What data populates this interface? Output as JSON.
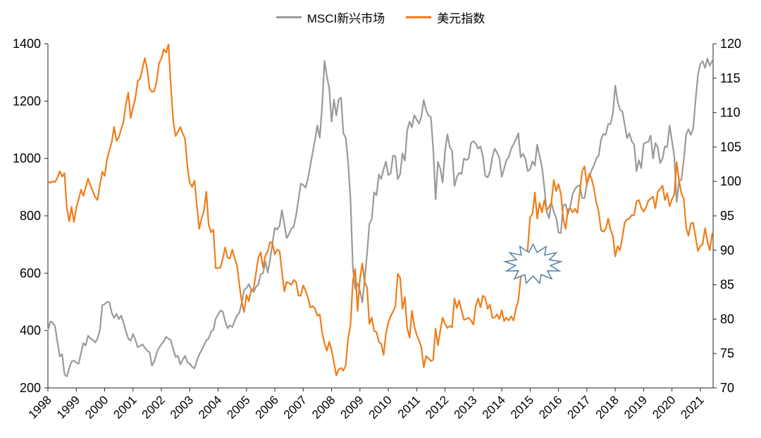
{
  "chart_data": {
    "type": "line",
    "title": "",
    "legend": [
      {
        "name": "MSCI新兴市场",
        "color": "#9a9a9a"
      },
      {
        "name": "美元指数",
        "color": "#ef7d1a"
      }
    ],
    "x_domain": [
      1998,
      2021.45
    ],
    "x_tick_labels": [
      "1998",
      "1999",
      "2000",
      "2001",
      "2002",
      "2003",
      "2004",
      "2005",
      "2006",
      "2007",
      "2008",
      "2009",
      "2010",
      "2011",
      "2012",
      "2013",
      "2014",
      "2015",
      "2016",
      "2017",
      "2018",
      "2019",
      "2020",
      "2021"
    ],
    "left_axis": {
      "label": "",
      "min": 200,
      "max": 1400,
      "ticks": [
        200,
        400,
        600,
        800,
        1000,
        1200,
        1400
      ]
    },
    "right_axis": {
      "label": "",
      "min": 70,
      "max": 120,
      "ticks": [
        70,
        75,
        80,
        85,
        90,
        95,
        100,
        105,
        110,
        115,
        120
      ]
    },
    "start_year": 1998,
    "frequency": "monthly",
    "series": [
      {
        "name": "MSCI新兴市场",
        "axis": "left",
        "color": "#9a9a9a",
        "values": [
          400,
          432,
          428,
          415,
          362,
          310,
          318,
          248,
          240,
          268,
          292,
          295,
          288,
          284,
          322,
          356,
          348,
          382,
          372,
          368,
          358,
          372,
          402,
          489,
          492,
          500,
          498,
          462,
          444,
          458,
          440,
          452,
          428,
          398,
          372,
          365,
          388,
          368,
          342,
          346,
          352,
          340,
          330,
          324,
          278,
          292,
          322,
          340,
          352,
          362,
          378,
          372,
          366,
          336,
          308,
          312,
          282,
          298,
          312,
          290,
          284,
          274,
          268,
          294,
          316,
          332,
          348,
          366,
          372,
          396,
          402,
          442,
          456,
          470,
          466,
          432,
          408,
          418,
          412,
          434,
          452,
          462,
          496,
          542,
          548,
          562,
          544,
          534,
          552,
          560,
          596,
          600,
          640,
          602,
          648,
          706,
          758,
          752,
          766,
          820,
          772,
          722,
          736,
          756,
          762,
          802,
          856,
          912,
          908,
          898,
          930,
          975,
          1020,
          1065,
          1115,
          1072,
          1180,
          1340,
          1288,
          1245,
          1128,
          1205,
          1150,
          1205,
          1212,
          1088,
          1072,
          988,
          858,
          618,
          545,
          565,
          540,
          498,
          575,
          668,
          772,
          788,
          882,
          872,
          944,
          928,
          962,
          989,
          942,
          948,
          1010,
          1008,
          928,
          944,
          1018,
          992,
          1098,
          1128,
          1108,
          1151,
          1136,
          1122,
          1146,
          1204,
          1168,
          1150,
          1144,
          1034,
          858,
          988,
          964,
          916,
          1024,
          1084,
          1040,
          1026,
          904,
          936,
          950,
          946,
          1000,
          994,
          1000,
          1055,
          1060,
          1052,
          1034,
          1042,
          1008,
          940,
          934,
          954,
          1004,
          1034,
          1020,
          1002,
          936,
          964,
          994,
          1006,
          1034,
          1050,
          1066,
          1088,
          1004,
          1016,
          1000,
          956,
          962,
          990,
          975,
          1048,
          1008,
          972,
          900,
          814,
          792,
          848,
          814,
          794,
          742,
          740,
          836,
          840,
          806,
          834,
          876,
          894,
          904,
          906,
          862,
          862,
          910,
          936,
          958,
          976,
          1000,
          1010,
          1066,
          1086,
          1082,
          1120,
          1120,
          1158,
          1254,
          1200,
          1170,
          1164,
          1120,
          1070,
          1088,
          1060,
          1048,
          956,
          994,
          966,
          1050,
          1056,
          1058,
          1080,
          1000,
          1054,
          1038,
          984,
          1000,
          1042,
          1040,
          1115,
          1062,
          1006,
          848,
          920,
          926,
          995,
          1084,
          1102,
          1082,
          1105,
          1205,
          1291,
          1330,
          1339,
          1316,
          1348,
          1323,
          1340
        ]
      },
      {
        "name": "美元指数",
        "axis": "right",
        "color": "#ef7d1a",
        "values": [
          100.0,
          99.8,
          100.0,
          99.9,
          100.5,
          101.5,
          100.7,
          101.2,
          96.2,
          94.2,
          96.3,
          94.1,
          96.2,
          97.4,
          98.8,
          97.9,
          99.2,
          100.4,
          99.4,
          98.6,
          97.7,
          97.3,
          99.5,
          101.4,
          100.8,
          103.2,
          104.5,
          105.7,
          107.9,
          105.9,
          106.4,
          107.6,
          108.7,
          111.2,
          112.9,
          109.2,
          110.7,
          112.1,
          114.6,
          114.9,
          116.4,
          117.9,
          116.3,
          113.5,
          113.0,
          113.1,
          114.5,
          117.2,
          117.8,
          119.2,
          118.7,
          119.9,
          114.0,
          108.8,
          106.6,
          107.2,
          107.9,
          107.0,
          106.2,
          102.2,
          99.8,
          99.2,
          100.1,
          96.6,
          93.1,
          94.6,
          95.7,
          98.5,
          93.7,
          92.6,
          93.0,
          87.4,
          87.4,
          87.5,
          88.8,
          90.4,
          88.9,
          88.8,
          90.1,
          88.8,
          87.8,
          85.0,
          82.5,
          81.0,
          83.5,
          82.6,
          84.2,
          84.4,
          86.6,
          88.9,
          89.7,
          87.5,
          89.2,
          89.9,
          91.2,
          91.0,
          89.4,
          90.1,
          89.9,
          86.9,
          84.0,
          85.4,
          85.2,
          85.0,
          85.7,
          85.4,
          83.4,
          83.4,
          84.9,
          84.1,
          83.1,
          81.7,
          81.9,
          81.5,
          80.5,
          80.7,
          78.1,
          76.5,
          75.4,
          76.7,
          75.5,
          73.7,
          71.8,
          72.7,
          72.9,
          72.5,
          73.3,
          77.2,
          79.1,
          85.5,
          87.3,
          81.2,
          85.8,
          88.1,
          85.4,
          84.6,
          79.3,
          80.2,
          78.3,
          78.1,
          76.7,
          76.4,
          74.8,
          77.9,
          79.5,
          80.4,
          81.1,
          81.9,
          86.6,
          86.0,
          81.5,
          83.2,
          78.7,
          77.3,
          81.2,
          79.0,
          77.7,
          76.9,
          75.9,
          73.0,
          74.6,
          74.3,
          73.9,
          74.1,
          78.6,
          76.2,
          78.4,
          80.2,
          79.3,
          78.7,
          79.0,
          78.8,
          83.0,
          81.6,
          82.7,
          81.2,
          79.9,
          80.0,
          80.2,
          79.8,
          79.2,
          81.9,
          83.0,
          81.7,
          83.4,
          83.1,
          81.5,
          82.1,
          80.2,
          80.2,
          80.7,
          80.0,
          81.3,
          79.7,
          80.2,
          79.8,
          80.4,
          79.8,
          81.5,
          82.7,
          85.9,
          87.0,
          88.4,
          90.3,
          94.8,
          95.3,
          98.4,
          94.6,
          96.9,
          95.5,
          97.3,
          95.8,
          96.3,
          96.9,
          100.2,
          98.6,
          99.6,
          98.2,
          94.6,
          93.1,
          95.9,
          96.1,
          95.5,
          96.0,
          95.4,
          98.4,
          101.5,
          102.2,
          99.5,
          101.1,
          100.4,
          99.0,
          96.9,
          95.6,
          92.9,
          92.7,
          93.1,
          94.6,
          93.0,
          92.1,
          89.1,
          90.6,
          90.0,
          91.8,
          94.0,
          94.5,
          94.6,
          95.1,
          95.1,
          97.1,
          97.3,
          96.2,
          95.6,
          96.2,
          97.2,
          97.5,
          97.8,
          96.1,
          98.5,
          98.9,
          99.4,
          97.3,
          98.3,
          96.4,
          97.4,
          98.1,
          102.8,
          100.1,
          98.3,
          97.4,
          93.3,
          92.1,
          93.9,
          94.0,
          91.9,
          89.9,
          90.6,
          90.9,
          93.2,
          91.3,
          90.0,
          92.4
        ]
      }
    ],
    "annotation": {
      "shape": "starburst",
      "x_year": 2015.1,
      "y_left_value": 632,
      "stroke_color": "#5a86a8",
      "fill_color": "#ffffff"
    },
    "axis_color": "#262626",
    "grid": false,
    "legend_position": "top-center"
  }
}
